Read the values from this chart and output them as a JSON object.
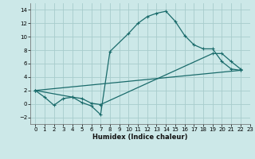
{
  "xlabel": "Humidex (Indice chaleur)",
  "background_color": "#cce8e8",
  "grid_color": "#a8cccc",
  "line_color": "#1a6b6b",
  "xlim": [
    -0.5,
    23
  ],
  "ylim": [
    -3,
    15
  ],
  "xticks": [
    0,
    1,
    2,
    3,
    4,
    5,
    6,
    7,
    8,
    9,
    10,
    11,
    12,
    13,
    14,
    15,
    16,
    17,
    18,
    19,
    20,
    21,
    22,
    23
  ],
  "yticks": [
    -2,
    0,
    2,
    4,
    6,
    8,
    10,
    12,
    14
  ],
  "line1_x": [
    0,
    1,
    2,
    3,
    4,
    5,
    6,
    7,
    8,
    10,
    11,
    12,
    13,
    14,
    15,
    16,
    17,
    18,
    19,
    20,
    21,
    22
  ],
  "line1_y": [
    2.0,
    1.0,
    -0.2,
    0.8,
    1.0,
    0.2,
    -0.3,
    -1.6,
    7.8,
    10.5,
    12.0,
    13.0,
    13.5,
    13.8,
    12.3,
    10.2,
    8.8,
    8.2,
    8.2,
    6.3,
    5.2,
    5.0
  ],
  "line2_x": [
    0,
    4,
    5,
    6,
    7,
    19,
    20,
    21,
    22
  ],
  "line2_y": [
    2.0,
    1.0,
    0.8,
    0.1,
    -0.1,
    7.5,
    7.5,
    6.3,
    5.2
  ],
  "line3_x": [
    0,
    22
  ],
  "line3_y": [
    2.0,
    5.0
  ]
}
